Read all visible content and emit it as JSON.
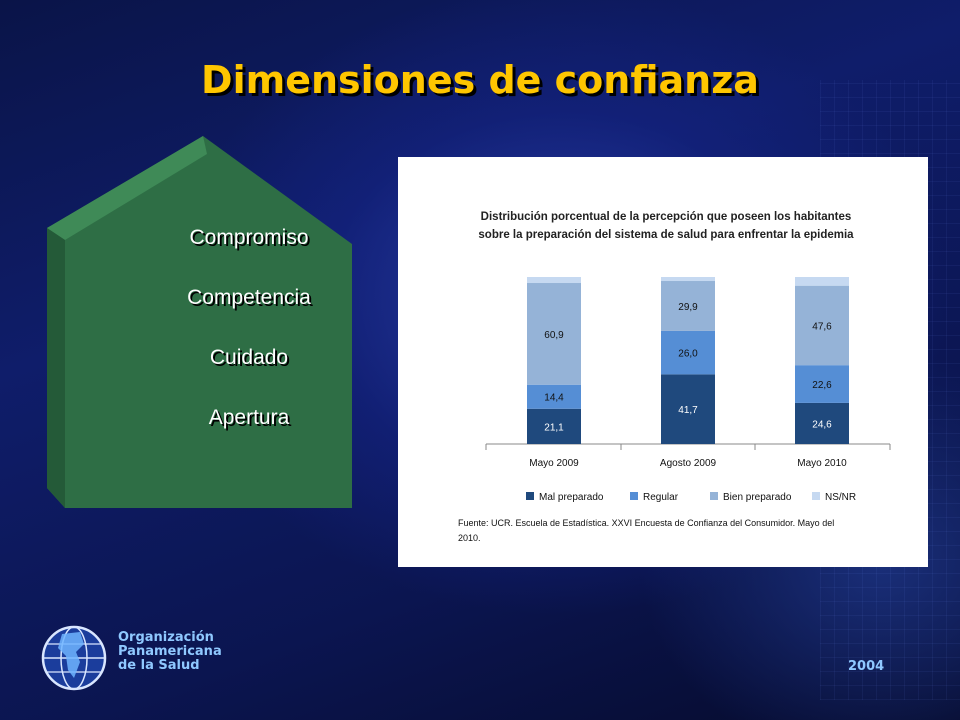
{
  "slide": {
    "title": "Dimensiones  de confianza",
    "dimensions": [
      "Compromiso",
      "Competencia",
      "Cuidado",
      "Apertura"
    ],
    "organization": [
      "Organización",
      "Panamericana",
      "de la Salud"
    ],
    "year": "2004"
  },
  "colors": {
    "title": "#ffc600",
    "house": "#2e6e45",
    "mal_preparado": "#1f497d",
    "regular": "#558ed5",
    "bien_preparado": "#95b3d7",
    "ns_nr": "#c6d9f1"
  },
  "chart_data": {
    "type": "bar",
    "stacked": true,
    "title": [
      "Distribución porcentual de la percepción que poseen los habitantes",
      "sobre la preparación del sistema de salud para enfrentar la epidemia"
    ],
    "categories": [
      "Mayo 2009",
      "Agosto 2009",
      "Mayo 2010"
    ],
    "series": [
      {
        "name": "Mal preparado",
        "values": [
          21.1,
          41.7,
          24.6
        ],
        "labels": [
          "21,1",
          "41,7",
          "24,6"
        ]
      },
      {
        "name": "Regular",
        "values": [
          14.4,
          26.0,
          22.6
        ],
        "labels": [
          "14,4",
          "26,0",
          "22,6"
        ]
      },
      {
        "name": "Bien preparado",
        "values": [
          60.9,
          29.9,
          47.6
        ],
        "labels": [
          "60,9",
          "29,9",
          "47,6"
        ]
      },
      {
        "name": "NS/NR",
        "values": [
          3.6,
          2.4,
          5.2
        ],
        "labels": [
          "",
          "",
          ""
        ]
      }
    ],
    "ylim": [
      0,
      100
    ],
    "legend_position": "bottom",
    "source": [
      "Fuente: UCR. Escuela de Estadística. XXVI Encuesta de Confianza del Consumidor. Mayo del",
      "2010."
    ]
  }
}
